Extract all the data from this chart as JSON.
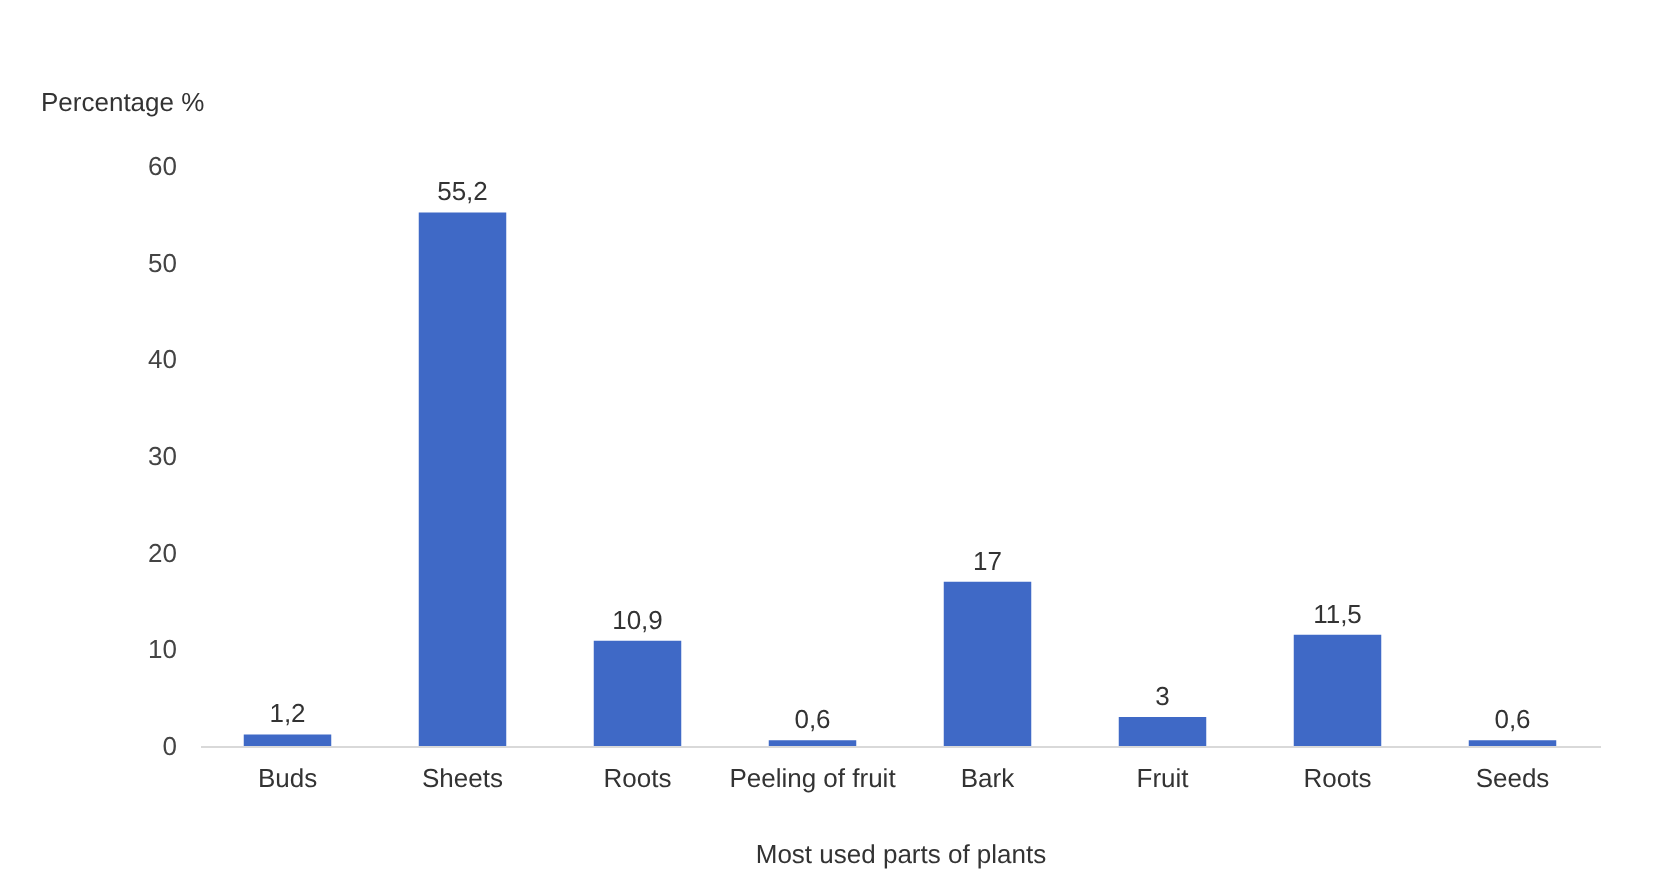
{
  "chart_data": {
    "type": "bar",
    "xlabel": "Most used parts of plants",
    "ylabel": "Percentage %",
    "categories": [
      "Buds",
      "Sheets",
      "Roots",
      "Peeling of fruit",
      "Bark",
      "Fruit",
      "Roots",
      "Seeds"
    ],
    "values": [
      1.2,
      55.2,
      10.9,
      0.6,
      17,
      3,
      11.5,
      0.6
    ],
    "value_labels": [
      "1,2",
      "55,2",
      "10,9",
      "0,6",
      "17",
      "3",
      "11,5",
      "0,6"
    ],
    "color": "#3f69c6",
    "ylim": [
      0,
      60
    ],
    "yticks": [
      0,
      10,
      20,
      30,
      40,
      50,
      60
    ],
    "grid": false
  }
}
